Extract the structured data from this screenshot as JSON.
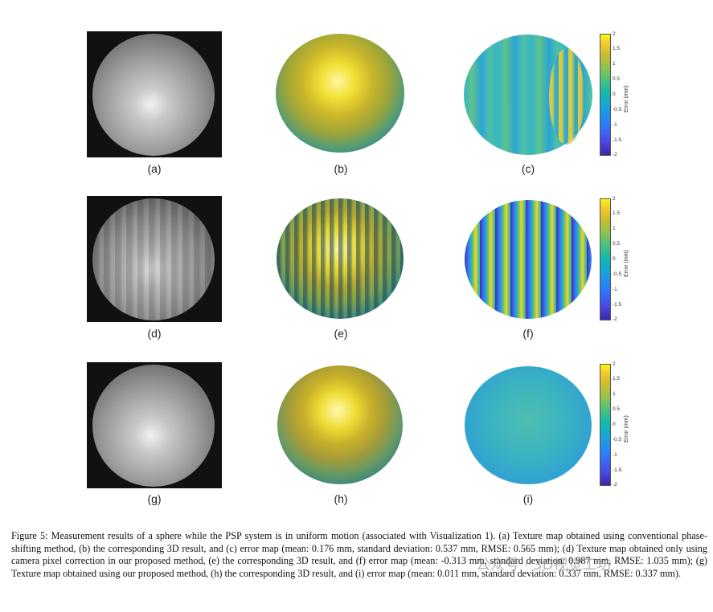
{
  "panels": [
    {
      "label": "(a)",
      "kind": "texture",
      "variant": "smooth"
    },
    {
      "label": "(b)",
      "kind": "surface",
      "variant": "rough"
    },
    {
      "label": "(c)",
      "kind": "error",
      "variant": "mild"
    },
    {
      "label": "(d)",
      "kind": "texture",
      "variant": "striped"
    },
    {
      "label": "(e)",
      "kind": "surface",
      "variant": "striped"
    },
    {
      "label": "(f)",
      "kind": "error",
      "variant": "strong"
    },
    {
      "label": "(g)",
      "kind": "texture",
      "variant": "smooth"
    },
    {
      "label": "(h)",
      "kind": "surface",
      "variant": "smooth"
    },
    {
      "label": "(i)",
      "kind": "error",
      "variant": "flat"
    }
  ],
  "colorbar": {
    "title": "Error (mm)",
    "ticks": [
      "2",
      "1.5",
      "1",
      "0.5",
      "0",
      "-0.5",
      "-1",
      "-1.5",
      "-2"
    ],
    "range": [
      -2,
      2
    ]
  },
  "caption": "Figure 5: Measurement results of a sphere while the PSP system is in uniform motion (associated with Visualization 1). (a) Texture map obtained using conventional phase-shifting method, (b) the corresponding 3D result, and (c) error map (mean: 0.176 mm, standard deviation: 0.537 mm, RMSE: 0.565 mm); (d) Texture map obtained only using camera pixel correction in our proposed method, (e) the corresponding 3D result, and (f) error map (mean: -0.313 mm, standard deviation: 0.987 mm, RMSE: 1.035 mm); (g) Texture map obtained using our proposed method, (h) the corresponding 3D result, and (i) error map (mean: 0.011 mm, standard deviation: 0.337 mm, RMSE: 0.337 mm).",
  "watermark": "公众号 · 3D视觉工坊"
}
